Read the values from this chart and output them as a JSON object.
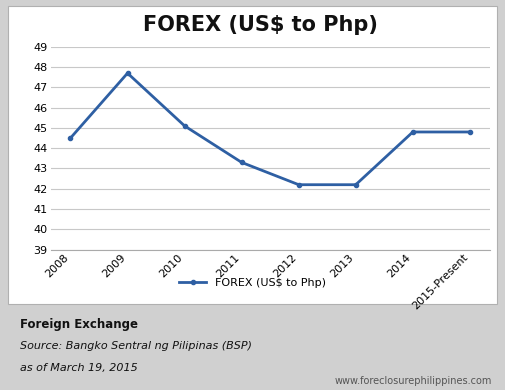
{
  "title": "FOREX (US$ to Php)",
  "categories": [
    "2008",
    "2009",
    "2010",
    "2011",
    "2012",
    "2013",
    "2014",
    "2015-Present"
  ],
  "values": [
    44.5,
    47.7,
    45.1,
    43.3,
    42.2,
    42.2,
    44.8,
    44.8
  ],
  "line_color": "#2E5FA3",
  "line_width": 2.0,
  "marker": "o",
  "marker_size": 3,
  "ylim": [
    39,
    49
  ],
  "yticks": [
    39,
    40,
    41,
    42,
    43,
    44,
    45,
    46,
    47,
    48,
    49
  ],
  "title_fontsize": 15,
  "tick_fontsize": 8,
  "legend_label": "FOREX (US$ to Php)",
  "legend_fontsize": 8,
  "bg_outer": "#d0d0d0",
  "bg_chart": "#ffffff",
  "grid_color": "#c8c8c8",
  "footer_bold": "Foreign Exchange",
  "footer_italic1": "Source: Bangko Sentral ng Pilipinas (BSP)",
  "footer_italic2": "as of March 19, 2015",
  "footer_url": "www.foreclosurephilippines.com"
}
